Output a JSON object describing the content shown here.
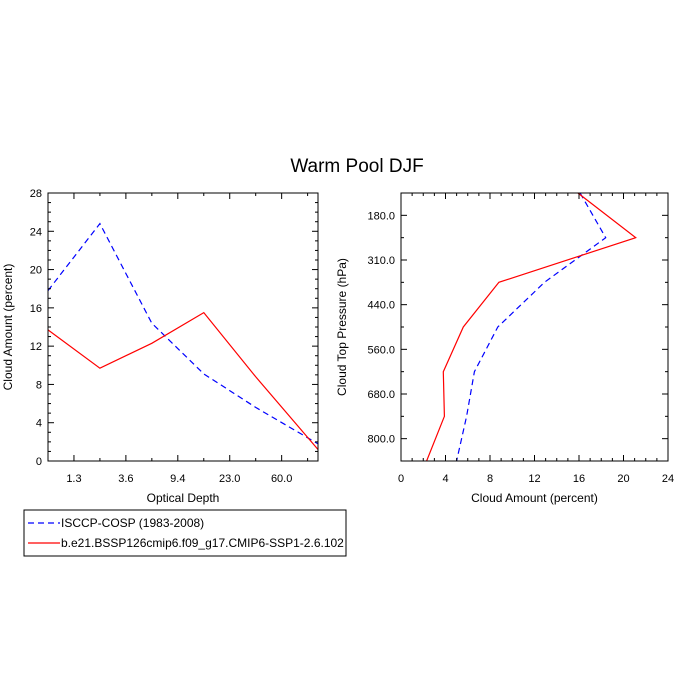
{
  "figure_title": "Warm Pool DJF",
  "legend": {
    "entries": [
      {
        "label": "ISCCP-COSP (1983-2008)",
        "color": "#0000ff",
        "dash": "dashed"
      },
      {
        "label": "b.e21.BSSP126cmip6.f09_g17.CMIP6-SSP1-2.6.102",
        "color": "#ff0000",
        "dash": "solid"
      }
    ]
  },
  "chart_data": [
    {
      "type": "line",
      "xlabel": "Optical Depth",
      "ylabel": "Cloud Amount (percent)",
      "x_tick_labels": [
        "1.3",
        "3.6",
        "9.4",
        "23.0",
        "60.0"
      ],
      "x_tick_positions": [
        0.5,
        1.5,
        2.5,
        3.5,
        4.5
      ],
      "xlim": [
        0,
        5.2
      ],
      "ylim": [
        0,
        28
      ],
      "y_ticks": [
        0,
        4,
        8,
        12,
        16,
        20,
        24,
        28
      ],
      "series": [
        {
          "color": "#0000ff",
          "dash": "dashed",
          "x": [
            0,
            1,
            2,
            3,
            4,
            5.2
          ],
          "y": [
            17.8,
            24.8,
            14.4,
            9.1,
            5.6,
            1.8
          ]
        },
        {
          "color": "#ff0000",
          "dash": "solid",
          "x": [
            0,
            1,
            2,
            3,
            4,
            5.2
          ],
          "y": [
            13.7,
            9.7,
            12.3,
            15.5,
            8.8,
            1.2
          ]
        }
      ]
    },
    {
      "type": "line",
      "xlabel": "Cloud Amount (percent)",
      "ylabel": "Cloud Top Pressure (hPa)",
      "x_ticks": [
        0,
        4,
        8,
        12,
        16,
        20,
        24
      ],
      "xlim": [
        0,
        24
      ],
      "y_tick_labels": [
        "180.0",
        "310.0",
        "440.0",
        "560.0",
        "680.0",
        "800.0"
      ],
      "y_tick_positions": [
        5.5,
        4.5,
        3.5,
        2.5,
        1.5,
        0.5
      ],
      "ylim": [
        0,
        6
      ],
      "series": [
        {
          "color": "#0000ff",
          "dash": "dashed",
          "x": [
            16.1,
            18.4,
            12.9,
            8.7,
            6.6,
            5.9,
            5.0
          ],
          "y": [
            6.0,
            5.0,
            4.0,
            3.0,
            2.0,
            1.0,
            0.0
          ]
        },
        {
          "color": "#ff0000",
          "dash": "solid",
          "x": [
            15.9,
            21.1,
            8.8,
            5.6,
            3.8,
            3.9,
            2.3
          ],
          "y": [
            6.0,
            5.0,
            4.0,
            3.0,
            2.0,
            1.0,
            0.0
          ]
        }
      ]
    }
  ]
}
